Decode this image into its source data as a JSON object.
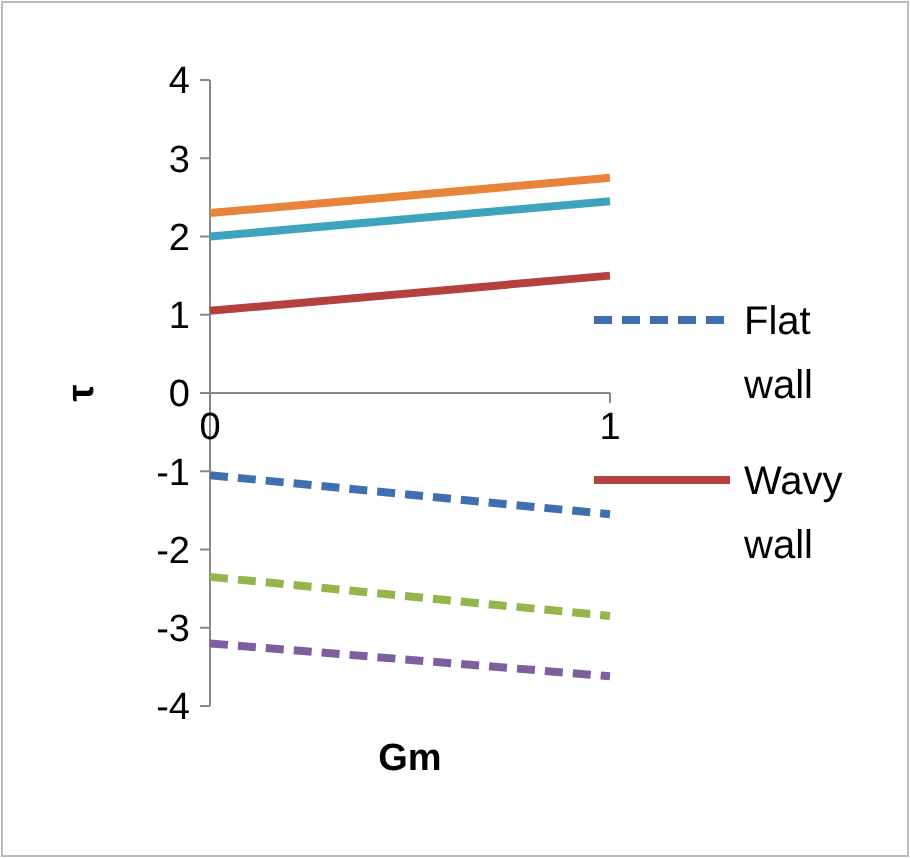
{
  "chart_data": {
    "type": "line",
    "xlabel": "Gm",
    "ylabel": "τ",
    "x": [
      0,
      1
    ],
    "xlim": [
      0,
      1
    ],
    "xticks": [
      0,
      1
    ],
    "ylim": [
      -4,
      4
    ],
    "yticks": [
      -4,
      -3,
      -2,
      -1,
      0,
      1,
      2,
      3,
      4
    ],
    "grid": false,
    "legend": "right",
    "marker": "none",
    "series": [
      {
        "color": "#e8843a",
        "values": [
          2.3,
          2.75
        ],
        "line_style": "solid"
      },
      {
        "color": "#3ea3bd",
        "values": [
          2.0,
          2.45
        ],
        "line_style": "solid"
      },
      {
        "name": "Flat wall",
        "color": "#3f6fb0",
        "values": [
          -1.05,
          -1.55
        ],
        "line_style": "dashed"
      },
      {
        "name": "Wavy wall",
        "color": "#b5413e",
        "values": [
          1.05,
          1.5
        ],
        "line_style": "solid"
      },
      {
        "color": "#93b54a",
        "values": [
          -2.35,
          -2.85
        ],
        "line_style": "dashed"
      },
      {
        "color": "#7d5fa0",
        "values": [
          -3.2,
          -3.62
        ],
        "line_style": "dashed"
      }
    ]
  }
}
